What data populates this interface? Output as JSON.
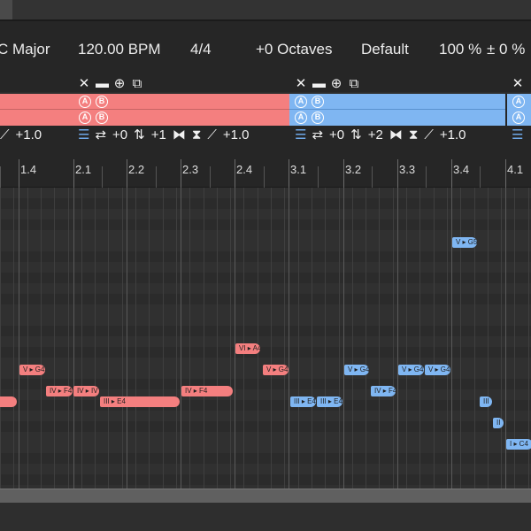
{
  "infobar": {
    "key": "C Major",
    "tempo": "120.00 BPM",
    "time_signature": "4/4",
    "octaves": "+0 Octaves",
    "preset": "Default",
    "velocity": "100 %",
    "offset": "± 0 %"
  },
  "tracks": [
    {
      "color": "#f47f7f",
      "params": {
        "dynamics": "+1.0"
      }
    },
    {
      "color": "#7fb6f2",
      "params": {
        "shift": "+0",
        "transpose": "+1",
        "dynamics": "+1.0"
      }
    },
    {
      "color": "#7fb6f2",
      "params": {
        "shift": "+0",
        "transpose": "+2",
        "dynamics": "+1.0"
      }
    }
  ],
  "lane_buttons": {
    "a": "A",
    "b": "B"
  },
  "ruler": {
    "labels": [
      "1.4",
      "2.1",
      "2.2",
      "2.3",
      "2.4",
      "3.1",
      "3.2",
      "3.3",
      "3.4",
      "4.1"
    ]
  },
  "notes": [
    {
      "label": "",
      "color": "red"
    },
    {
      "label": "V ▸ G4",
      "color": "red"
    },
    {
      "label": "IV ▸ F4",
      "color": "red"
    },
    {
      "label": "IV ▸ IV",
      "color": "red"
    },
    {
      "label": "III ▸ E4",
      "color": "red"
    },
    {
      "label": "IV ▸ F4",
      "color": "red"
    },
    {
      "label": "VI ▸ A4",
      "color": "red"
    },
    {
      "label": "V ▸ G4",
      "color": "red"
    },
    {
      "label": "V ▸ G5",
      "color": "blue"
    },
    {
      "label": "V ▸ G4",
      "color": "blue"
    },
    {
      "label": "V ▸ G4",
      "color": "blue"
    },
    {
      "label": "V ▸ G4",
      "color": "blue"
    },
    {
      "label": "III ▸ E4",
      "color": "blue"
    },
    {
      "label": "III ▸ E4",
      "color": "blue"
    },
    {
      "label": "IV ▸ F4",
      "color": "blue"
    },
    {
      "label": "III",
      "color": "blue"
    },
    {
      "label": "II",
      "color": "blue"
    },
    {
      "label": "I ▸ C4",
      "color": "blue"
    }
  ],
  "colors": {
    "accent_red": "#f47f7f",
    "accent_blue": "#7fb6f2",
    "background": "#262626"
  },
  "icons": [
    "close-icon",
    "minus-icon",
    "add-circle-icon",
    "copy-icon",
    "list-icon",
    "shift-icon",
    "transpose-icon",
    "mirror-icon",
    "flip-icon",
    "dynamics-icon"
  ]
}
